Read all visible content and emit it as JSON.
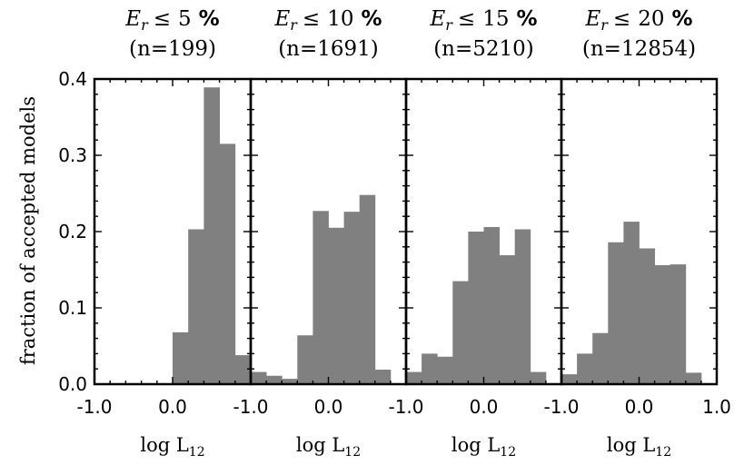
{
  "chart_data": {
    "type": "bar",
    "ylabel": "fraction of accepted models",
    "ylim": [
      0,
      0.4
    ],
    "yticks": [
      0.0,
      0.1,
      0.2,
      0.3,
      0.4
    ],
    "ytick_labels": [
      "0.0",
      "0.1",
      "0.2",
      "0.3",
      "0.4"
    ],
    "xlim": [
      -1.0,
      1.0
    ],
    "xtick_labels": [
      "-1.0",
      "-1.0",
      "-1.0",
      "-1.0",
      "0.0",
      "0.0",
      "0.0",
      "0.0",
      "1.0"
    ],
    "xlabel": {
      "main": "log L",
      "sub": "12"
    },
    "bin_edges": [
      -1.0,
      -0.9,
      -0.8,
      -0.7,
      -0.6,
      -0.5,
      -0.4,
      -0.3,
      -0.2,
      -0.1,
      0.0,
      0.1,
      0.2,
      0.3,
      0.4,
      0.5,
      0.6,
      0.7,
      0.8,
      0.9,
      1.0
    ],
    "panels": [
      {
        "title": {
          "var": "E",
          "sub": "r",
          "op": "≤",
          "num": "5",
          "pct": "%",
          "n_label": "(n=199)"
        },
        "values": [
          0,
          0,
          0,
          0,
          0,
          0,
          0,
          0,
          0,
          0,
          0.068,
          0.068,
          0.203,
          0.203,
          0.389,
          0.389,
          0.315,
          0.315,
          0.038,
          0.038
        ]
      },
      {
        "title": {
          "var": "E",
          "sub": "r",
          "op": "≤",
          "num": "10",
          "pct": "%",
          "n_label": "(n=1691)"
        },
        "values": [
          0.016,
          0.016,
          0.011,
          0.011,
          0.007,
          0.007,
          0.064,
          0.064,
          0.227,
          0.227,
          0.205,
          0.205,
          0.226,
          0.226,
          0.248,
          0.248,
          0.019,
          0.019,
          0,
          0
        ]
      },
      {
        "title": {
          "var": "E",
          "sub": "r",
          "op": "≤",
          "num": "15",
          "pct": "%",
          "n_label": "(n=5210)"
        },
        "values": [
          0.016,
          0.016,
          0.04,
          0.04,
          0.036,
          0.036,
          0.135,
          0.135,
          0.2,
          0.2,
          0.206,
          0.206,
          0.169,
          0.169,
          0.203,
          0.203,
          0.016,
          0.016,
          0,
          0
        ]
      },
      {
        "title": {
          "var": "E",
          "sub": "r",
          "op": "≤",
          "num": "20",
          "pct": "%",
          "n_label": "(n=12854)"
        },
        "values": [
          0.013,
          0.013,
          0.04,
          0.04,
          0.067,
          0.067,
          0.186,
          0.186,
          0.213,
          0.213,
          0.178,
          0.178,
          0.156,
          0.156,
          0.157,
          0.157,
          0.015,
          0.015,
          0,
          0
        ]
      }
    ],
    "bar_color": "#808080",
    "frame_color": "#000000"
  }
}
